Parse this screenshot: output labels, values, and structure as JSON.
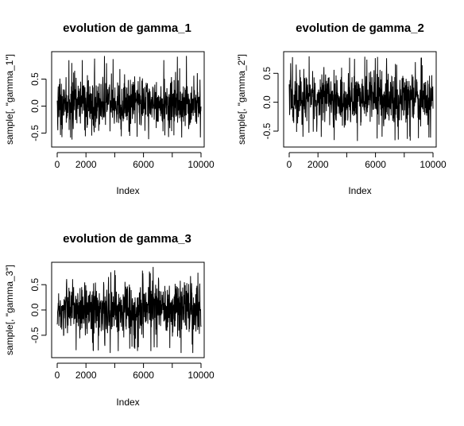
{
  "chart_data": [
    {
      "type": "line",
      "title": "evolution de gamma_1",
      "xlabel": "Index",
      "ylabel": "sample[, \"gamma_1\"]",
      "xlim": [
        0,
        10000
      ],
      "ylim": [
        -0.7,
        0.95
      ],
      "xticks": [
        0,
        2000,
        6000,
        10000
      ],
      "yticks": [
        -0.5,
        0.0,
        0.5
      ],
      "n": 10000,
      "series": [
        {
          "values_summary": {
            "center": 0.05,
            "typical_low": -0.3,
            "typical_high": 0.4,
            "min": -0.62,
            "max": 0.93
          }
        }
      ]
    },
    {
      "type": "line",
      "title": "evolution de gamma_2",
      "xlabel": "Index",
      "ylabel": "sample[, \"gamma_2\"]",
      "xlim": [
        0,
        10000
      ],
      "ylim": [
        -0.72,
        0.82
      ],
      "xticks": [
        0,
        2000,
        6000,
        10000
      ],
      "yticks": [
        -0.5,
        0.0,
        0.5
      ],
      "n": 10000,
      "series": [
        {
          "values_summary": {
            "center": 0.08,
            "typical_low": -0.25,
            "typical_high": 0.45,
            "min": -0.68,
            "max": 0.8
          }
        }
      ]
    },
    {
      "type": "line",
      "title": "evolution de gamma_3",
      "xlabel": "Index",
      "ylabel": "sample[, \"gamma_3\"]",
      "xlim": [
        0,
        10000
      ],
      "ylim": [
        -0.88,
        0.88
      ],
      "xticks": [
        0,
        2000,
        6000,
        10000
      ],
      "yticks": [
        -0.5,
        0.0,
        0.5
      ],
      "n": 10000,
      "series": [
        {
          "values_summary": {
            "center": 0.02,
            "typical_low": -0.35,
            "typical_high": 0.45,
            "min": -0.85,
            "max": 0.85
          }
        }
      ]
    }
  ]
}
